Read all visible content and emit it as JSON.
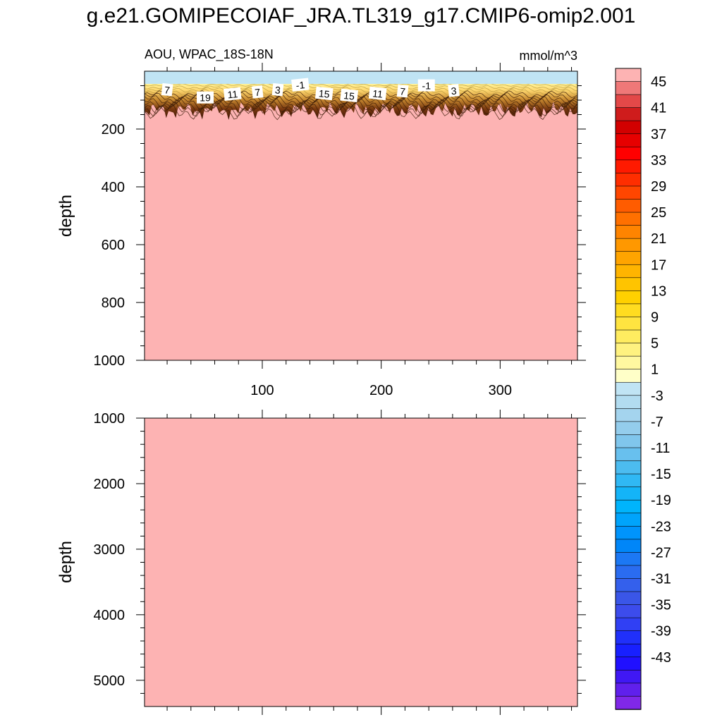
{
  "title": "g.e21.GOMIPECOIAF_JRA.TL319_g17.CMIP6-omip2.001",
  "chart_data": [
    {
      "type": "heatmap",
      "panel": "top",
      "subtitle_left": "AOU, WPAC_18S-18N",
      "subtitle_right": "mmol/m^3",
      "ylabel": "depth",
      "xlabel": "",
      "xlim": [
        1,
        365
      ],
      "ylim": [
        1000,
        0
      ],
      "x_ticks": [
        100,
        200,
        300
      ],
      "y_ticks": [
        200,
        400,
        600,
        800,
        1000
      ],
      "contour_labels": [
        {
          "x": 20,
          "y": 65,
          "text": "7"
        },
        {
          "x": 52,
          "y": 92,
          "text": "19"
        },
        {
          "x": 75,
          "y": 80,
          "text": "11"
        },
        {
          "x": 96,
          "y": 73,
          "text": "7"
        },
        {
          "x": 113,
          "y": 65,
          "text": "3"
        },
        {
          "x": 132,
          "y": 48,
          "text": "-1"
        },
        {
          "x": 152,
          "y": 78,
          "text": "15"
        },
        {
          "x": 173,
          "y": 85,
          "text": "15"
        },
        {
          "x": 197,
          "y": 78,
          "text": "11"
        },
        {
          "x": 218,
          "y": 70,
          "text": "7"
        },
        {
          "x": 238,
          "y": 50,
          "text": "-1"
        },
        {
          "x": 261,
          "y": 68,
          "text": "3"
        }
      ],
      "description_values": {
        "surface_band_value": -3,
        "deep_fill_value": 46,
        "gradient_depth_range": [
          40,
          140
        ]
      },
      "grid": false
    },
    {
      "type": "heatmap",
      "panel": "bottom",
      "ylabel": "depth",
      "xlabel": "",
      "xlim": [
        1,
        365
      ],
      "ylim": [
        5400,
        1000
      ],
      "y_ticks": [
        1000,
        2000,
        3000,
        4000,
        5000
      ],
      "fill_value": 46,
      "grid": false
    }
  ],
  "colorbar": {
    "labels": [
      "45",
      "41",
      "37",
      "33",
      "29",
      "25",
      "21",
      "17",
      "13",
      "9",
      "5",
      "1",
      "-3",
      "-7",
      "-11",
      "-15",
      "-19",
      "-23",
      "-27",
      "-31",
      "-35",
      "-39",
      "-43"
    ],
    "colors": [
      "#fdb3b3",
      "#ef7878",
      "#e34848",
      "#cf1c1c",
      "#d20000",
      "#e60000",
      "#ff0000",
      "#ff1a00",
      "#ff2e00",
      "#ff4600",
      "#ff5c00",
      "#ff7000",
      "#ff8400",
      "#ff9800",
      "#ffa400",
      "#ffb400",
      "#ffc400",
      "#ffd000",
      "#ffdc20",
      "#ffe440",
      "#ffec60",
      "#fff280",
      "#fff8a0",
      "#ffffc8",
      "#c0e4f4",
      "#b2dcf0",
      "#a4d4ee",
      "#94cdec",
      "#80c6ec",
      "#68c0ee",
      "#4cbcf0",
      "#30b8f4",
      "#14b4f8",
      "#00b4fc",
      "#00a4fc",
      "#0094fc",
      "#0086f8",
      "#1c78f4",
      "#2a6cf0",
      "#3460ec",
      "#3a56e8",
      "#3c4cec",
      "#3040f4",
      "#2030fa",
      "#1820ff",
      "#2010ff",
      "#4018f4",
      "#6020ec",
      "#8028e8"
    ]
  }
}
